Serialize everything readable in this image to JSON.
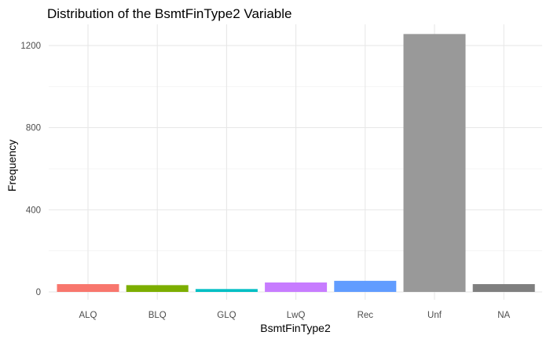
{
  "chart_data": {
    "type": "bar",
    "title": "Distribution of the BsmtFinType2 Variable",
    "xlabel": "BsmtFinType2",
    "ylabel": "Frequency",
    "categories": [
      "ALQ",
      "BLQ",
      "GLQ",
      "LwQ",
      "Rec",
      "Unf",
      "NA"
    ],
    "values": [
      38,
      33,
      14,
      46,
      54,
      1256,
      38
    ],
    "colors": [
      "#F8766D",
      "#7CAE00",
      "#00BFC4",
      "#C77CFF",
      "#619CFF",
      "#999999",
      "#7F7F7F"
    ],
    "yticks": [
      0,
      400,
      800,
      1200
    ],
    "ylim": [
      0,
      1256
    ],
    "grid": true,
    "legend": "none"
  }
}
